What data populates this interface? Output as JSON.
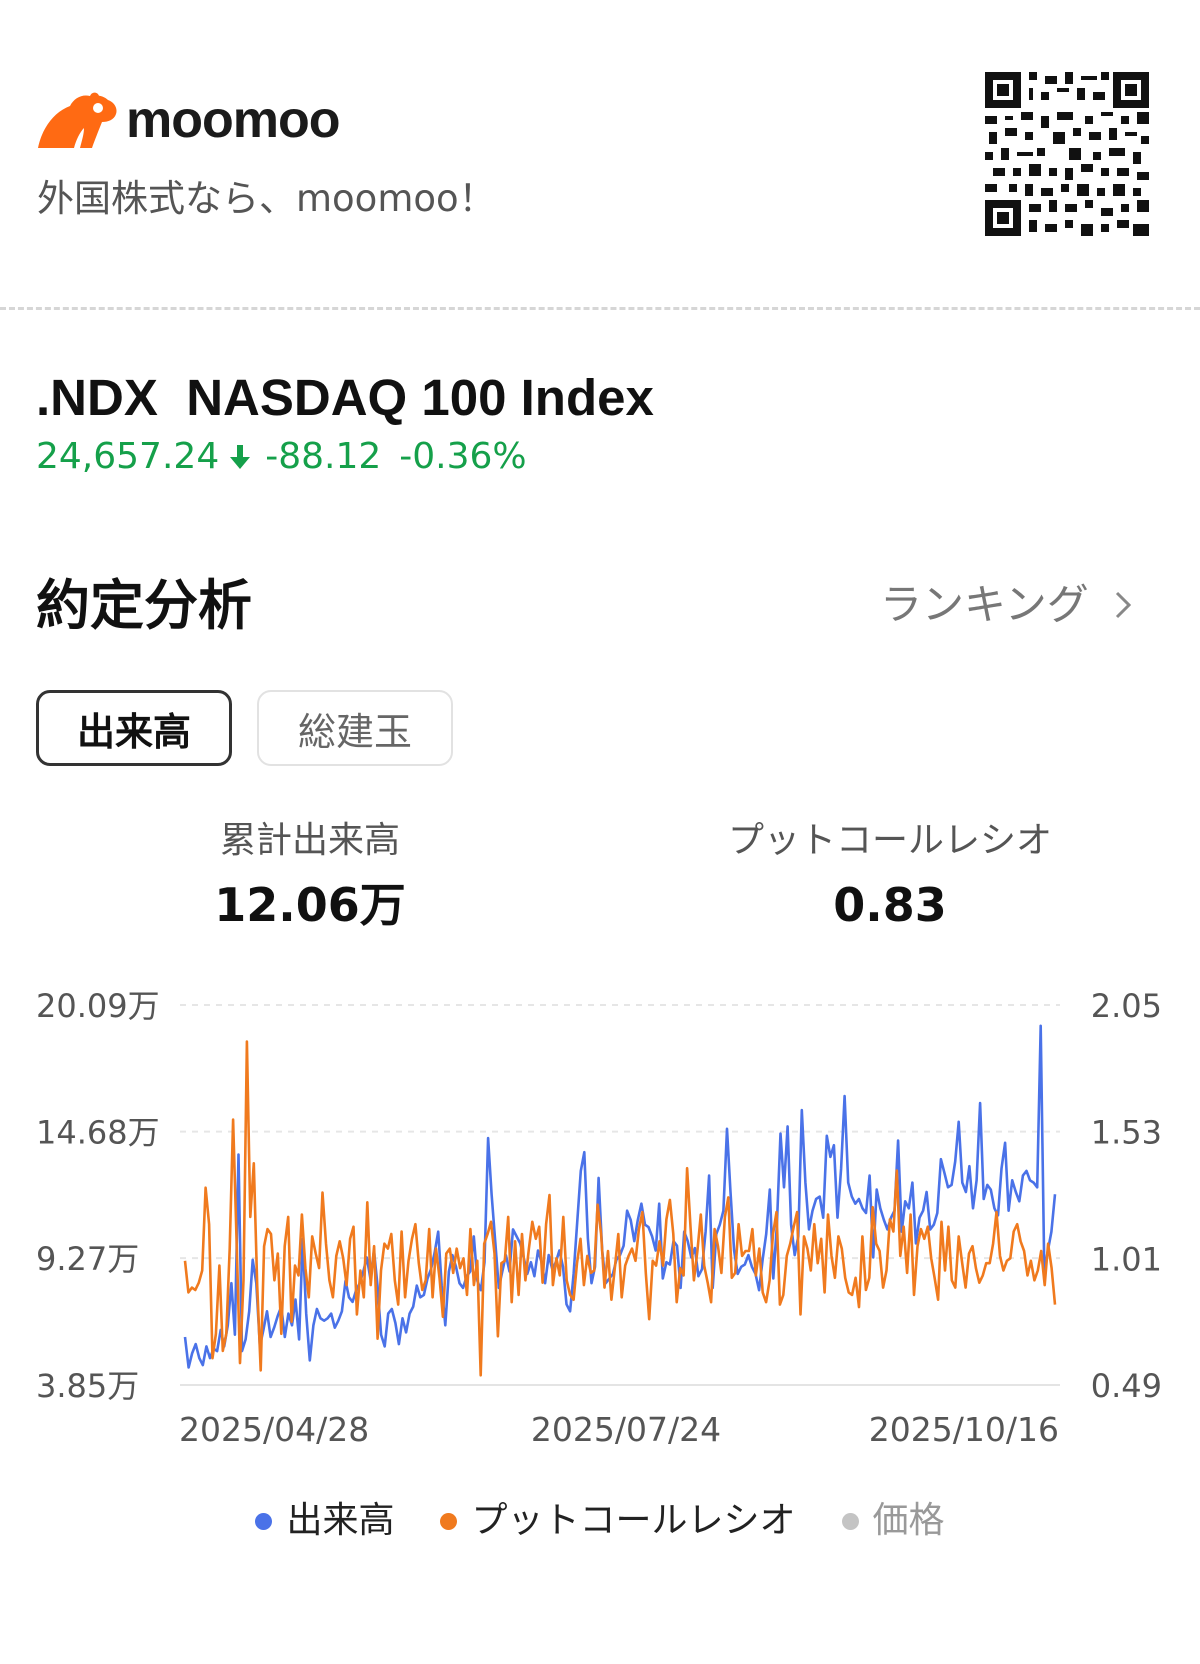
{
  "brand": {
    "name": "moomoo",
    "tagline": "外国株式なら、moomoo！",
    "accent_color": "#ff6a13",
    "icons": [
      "moomoo-logo-icon",
      "qr-code-icon"
    ]
  },
  "stock": {
    "symbol": ".NDX",
    "name": "NASDAQ 100 Index",
    "price": "24,657.24",
    "change": "-88.12",
    "change_pct": "-0.36%",
    "direction_icon": "arrow-down-icon",
    "change_color": "#15a04a"
  },
  "section": {
    "title": "約定分析",
    "ranking_label": "ランキング",
    "ranking_icon": "chevron-right-icon"
  },
  "tabs": [
    {
      "label": "出来高",
      "selected": true
    },
    {
      "label": "総建玉",
      "selected": false
    }
  ],
  "stats": {
    "volume_label": "累計出来高",
    "volume_value": "12.06万",
    "pcr_label": "プットコールレシオ",
    "pcr_value": "0.83"
  },
  "legend": [
    {
      "label": "出来高",
      "color": "#4a72e8"
    },
    {
      "label": "プットコールレシオ",
      "color": "#f07a1e"
    },
    {
      "label": "価格",
      "color": "#c4c4c4"
    }
  ],
  "chart_data": {
    "type": "line",
    "x_tick_labels": [
      "2025/04/28",
      "2025/07/24",
      "2025/10/16"
    ],
    "left_axis": {
      "ticks": [
        "20.09万",
        "14.68万",
        "9.27万",
        "3.85万"
      ],
      "values": [
        20.09,
        14.68,
        9.27,
        3.85
      ],
      "ylim": [
        3.85,
        20.09
      ],
      "unit": "万"
    },
    "right_axis": {
      "ticks": [
        "2.05",
        "1.53",
        "1.01",
        "0.49"
      ],
      "values": [
        2.05,
        1.53,
        1.01,
        0.49
      ],
      "ylim": [
        0.49,
        2.05
      ]
    },
    "grid": true,
    "legend_position": "bottom",
    "series": [
      {
        "name": "出来高",
        "axis": "left",
        "color": "#4a72e8",
        "values": [
          5.9,
          4.6,
          5.2,
          5.6,
          5.0,
          4.7,
          5.5,
          5.0,
          5.4,
          5.3,
          6.2,
          5.5,
          6.4,
          8.2,
          6.0,
          13.7,
          5.3,
          5.8,
          7.0,
          9.2,
          8.2,
          5.5,
          6.2,
          7.0,
          5.9,
          6.3,
          6.8,
          7.2,
          5.9,
          6.9,
          6.4,
          7.5,
          5.8,
          10.1,
          6.9,
          4.9,
          6.4,
          7.1,
          6.7,
          6.6,
          6.7,
          6.9,
          6.3,
          6.6,
          7.0,
          8.3,
          7.6,
          7.4,
          7.9,
          8.2,
          8.7,
          9.3,
          8.4,
          9.6,
          8.1,
          6.0,
          5.5,
          6.9,
          7.1,
          6.5,
          5.6,
          6.7,
          6.1,
          6.9,
          7.2,
          8.1,
          7.6,
          7.7,
          8.4,
          8.8,
          9.5,
          10.4,
          8.1,
          6.4,
          8.7,
          9.4,
          8.9,
          8.2,
          8.0,
          8.5,
          8.7,
          10.2,
          8.3,
          7.9,
          9.1,
          14.4,
          12.0,
          10.0,
          8.0,
          8.7,
          9.4,
          8.7,
          10.5,
          10.2,
          9.9,
          9.3,
          8.6,
          9.1,
          8.5,
          9.6,
          9.1,
          8.2,
          9.4,
          8.8,
          9.1,
          9.6,
          8.9,
          7.3,
          7.0,
          8.6,
          10.8,
          13.0,
          13.8,
          10.1,
          8.2,
          8.9,
          12.7,
          9.6,
          8.2,
          8.4,
          8.6,
          9.2,
          9.4,
          9.8,
          11.3,
          10.9,
          10.0,
          10.9,
          11.6,
          10.7,
          10.6,
          10.2,
          9.6,
          11.6,
          8.4,
          9.1,
          9.0,
          10.0,
          9.8,
          8.0,
          10.4,
          10.0,
          9.3,
          9.7,
          8.5,
          8.8,
          10.4,
          12.8,
          8.0,
          10.3,
          10.7,
          11.3,
          14.8,
          12.1,
          9.6,
          8.6,
          8.9,
          9.0,
          9.4,
          8.9,
          8.6,
          7.9,
          9.2,
          10.3,
          12.2,
          8.4,
          10.7,
          14.6,
          12.3,
          14.9,
          10.7,
          9.4,
          10.2,
          15.6,
          12.5,
          10.5,
          11.3,
          11.8,
          11.9,
          11.0,
          14.5,
          13.6,
          14.1,
          11.0,
          13.1,
          16.2,
          12.5,
          11.9,
          11.6,
          11.8,
          11.4,
          11.2,
          12.8,
          9.3,
          12.2,
          11.4,
          10.9,
          10.5,
          11.0,
          11.3,
          14.3,
          10.4,
          11.7,
          11.4,
          12.5,
          9.9,
          11.0,
          11.3,
          12.1,
          10.5,
          10.7,
          11.2,
          13.5,
          12.9,
          12.3,
          12.4,
          13.4,
          15.1,
          12.5,
          12.1,
          13.2,
          11.4,
          12.6,
          15.9,
          11.8,
          12.4,
          12.2,
          11.4,
          11.1,
          13.1,
          14.2,
          11.3,
          12.6,
          12.1,
          11.7,
          12.8,
          13.0,
          12.6,
          12.5,
          12.3,
          19.2,
          8.7,
          9.6,
          10.4,
          12.0
        ]
      },
      {
        "name": "プットコールレシオ",
        "axis": "right",
        "color": "#f07a1e",
        "values": [
          1.0,
          0.87,
          0.89,
          0.88,
          0.91,
          0.96,
          1.3,
          1.15,
          0.6,
          0.7,
          0.98,
          0.63,
          0.7,
          1.05,
          1.58,
          1.08,
          0.58,
          0.92,
          1.9,
          1.18,
          1.4,
          0.9,
          0.55,
          1.06,
          1.13,
          1.11,
          0.92,
          1.03,
          0.7,
          1.06,
          1.18,
          0.75,
          0.98,
          0.94,
          1.19,
          0.97,
          0.85,
          1.1,
          1.03,
          0.97,
          1.28,
          1.07,
          0.92,
          0.85,
          1.02,
          1.08,
          1.01,
          0.9,
          1.09,
          1.14,
          0.78,
          0.96,
          0.85,
          1.24,
          0.9,
          1.06,
          0.68,
          0.96,
          1.07,
          1.05,
          1.11,
          0.92,
          0.82,
          1.12,
          0.85,
          1.0,
          1.09,
          1.15,
          0.99,
          0.88,
          0.92,
          1.13,
          0.85,
          1.05,
          0.93,
          0.77,
          1.03,
          1.05,
          0.95,
          1.05,
          0.97,
          1.01,
          0.86,
          1.13,
          0.9,
          1.0,
          0.53,
          1.07,
          1.11,
          1.16,
          1.03,
          0.69,
          0.99,
          1.0,
          1.18,
          0.83,
          1.08,
          0.86,
          1.11,
          0.92,
          1.05,
          1.16,
          1.09,
          1.14,
          0.91,
          1.15,
          1.27,
          0.9,
          1.01,
          0.94,
          1.18,
          0.92,
          0.86,
          0.84,
          0.99,
          1.09,
          0.9,
          1.02,
          0.95,
          0.96,
          1.23,
          1.11,
          0.89,
          1.04,
          0.84,
          0.97,
          1.11,
          0.85,
          0.98,
          1.02,
          1.05,
          1.0,
          1.13,
          1.2,
          0.95,
          0.76,
          1.0,
          0.98,
          1.08,
          0.98,
          1.17,
          1.25,
          1.11,
          0.83,
          0.97,
          0.94,
          1.38,
          1.14,
          0.92,
          1.04,
          1.19,
          0.98,
          0.91,
          0.83,
          1.13,
          1.06,
          0.95,
          1.18,
          1.26,
          0.93,
          0.95,
          1.15,
          1.02,
          1.04,
          1.04,
          1.13,
          0.94,
          1.05,
          0.87,
          0.83,
          0.92,
          1.11,
          1.2,
          0.82,
          0.86,
          1.02,
          1.07,
          1.14,
          1.2,
          0.78,
          1.1,
          1.05,
          0.96,
          1.15,
          0.99,
          1.09,
          0.87,
          1.19,
          1.02,
          0.93,
          1.1,
          1.05,
          0.93,
          0.87,
          0.86,
          0.93,
          0.81,
          1.1,
          0.88,
          0.93,
          1.22,
          1.07,
          1.04,
          0.89,
          0.96,
          1.17,
          1.12,
          1.37,
          1.02,
          1.14,
          0.95,
          1.19,
          0.86,
          1.06,
          1.13,
          1.09,
          1.14,
          1.01,
          0.93,
          0.84,
          1.16,
          0.96,
          1.14,
          0.92,
          0.89,
          1.1,
          0.99,
          0.89,
          1.03,
          1.06,
          0.97,
          0.91,
          0.94,
          0.99,
          0.99,
          1.07,
          1.2,
          1.02,
          0.96,
          1.0,
          1.01,
          1.12,
          1.15,
          1.08,
          1.04,
          0.94,
          1.0,
          0.92,
          0.96,
          1.04,
          0.9,
          1.07,
          0.97,
          0.82
        ]
      },
      {
        "name": "価格",
        "axis": "right",
        "color": "#c4c4c4",
        "values": []
      }
    ]
  }
}
